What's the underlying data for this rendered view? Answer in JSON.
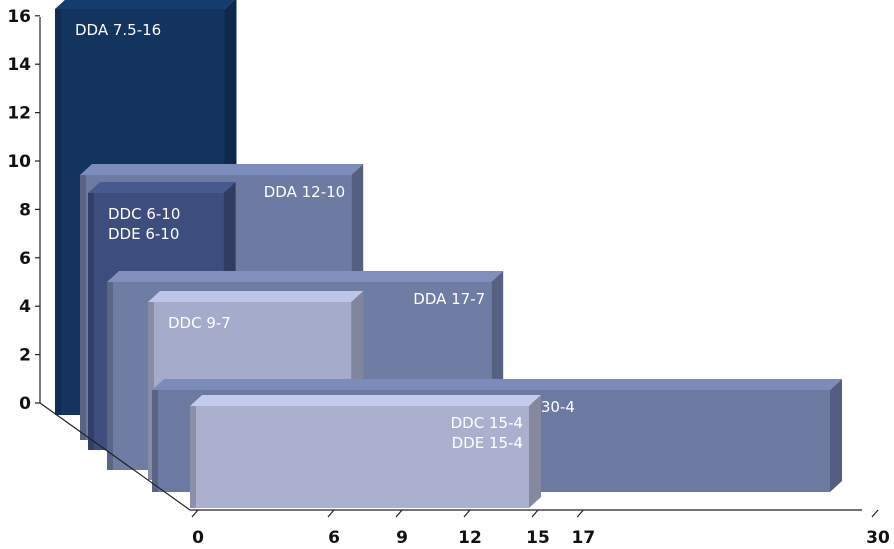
{
  "chart_data": {
    "type": "bar",
    "title": "",
    "xlabel": "",
    "ylabel": "",
    "ylim": [
      0,
      16
    ],
    "xlim": [
      0,
      30
    ],
    "y_ticks": [
      "0",
      "2",
      "4",
      "6",
      "8",
      "10",
      "12",
      "14",
      "16"
    ],
    "x_ticks": [
      "0",
      "6",
      "9",
      "12",
      "15",
      "17",
      "30"
    ],
    "x_tick_values": [
      0,
      6,
      9,
      12,
      15,
      17,
      30
    ],
    "grid": false,
    "legend": "none",
    "blocks": [
      {
        "labels": [
          "DDA 7.5-16"
        ],
        "width": 7.5,
        "height": 16,
        "depth_row": 0,
        "color": "#13345f"
      },
      {
        "labels": [
          "DDA 12-10"
        ],
        "width": 12,
        "height": 10,
        "depth_row": 1,
        "color": "#6d7aa2"
      },
      {
        "labels": [
          "DDC 6-10",
          "DDE 6-10"
        ],
        "width": 6,
        "height": 10,
        "depth_row": 2,
        "color": "#3d4d7d"
      },
      {
        "labels": [
          "DDA 17-7"
        ],
        "width": 17,
        "height": 7,
        "depth_row": 3,
        "color": "#6f7ca4"
      },
      {
        "labels": [
          "DDC 9-7"
        ],
        "width": 9,
        "height": 7,
        "depth_row": 4,
        "color": "#a5abca"
      },
      {
        "labels": [
          "DDA 30-4"
        ],
        "width": 30,
        "height": 4,
        "depth_row": 5,
        "color": "#6c79a1"
      },
      {
        "labels": [
          "DDC 15-4",
          "DDE 15-4"
        ],
        "width": 15,
        "height": 4,
        "depth_row": 6,
        "color": "#aab0cd"
      }
    ]
  }
}
